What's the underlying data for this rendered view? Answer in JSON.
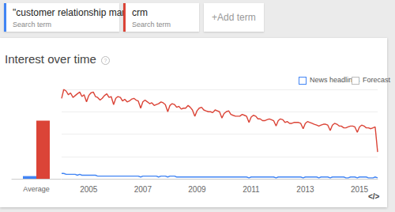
{
  "header": {
    "term_sublabel": "Search term",
    "add_term": "+Add term",
    "section_title": "Interest over time",
    "help": "?",
    "options": [
      "News headlines",
      "Forecast"
    ],
    "embed": "</>"
  },
  "chart_data": [
    {
      "type": "bar",
      "categories": [
        "Average"
      ],
      "series": [
        {
          "name": "\"customer relationship manag...",
          "color": "#4285f4",
          "values": [
            3
          ]
        },
        {
          "name": "crm",
          "color": "#db4437",
          "values": [
            65
          ]
        }
      ],
      "ylim": [
        0,
        100
      ],
      "yticks": [
        0,
        25,
        50,
        75,
        100
      ],
      "grid": false,
      "tick_labels": "x"
    },
    {
      "type": "line",
      "x": [
        2004,
        2004.08,
        2004.17,
        2004.25,
        2004.33,
        2004.42,
        2004.5,
        2004.58,
        2004.67,
        2004.75,
        2004.83,
        2004.92,
        2005,
        2005.08,
        2005.17,
        2005.25,
        2005.33,
        2005.42,
        2005.5,
        2005.58,
        2005.67,
        2005.75,
        2005.83,
        2005.92,
        2006,
        2006.08,
        2006.17,
        2006.25,
        2006.33,
        2006.42,
        2006.5,
        2006.58,
        2006.67,
        2006.75,
        2006.83,
        2006.92,
        2007,
        2007.08,
        2007.17,
        2007.25,
        2007.33,
        2007.42,
        2007.5,
        2007.58,
        2007.67,
        2007.75,
        2007.83,
        2007.92,
        2008,
        2008.08,
        2008.17,
        2008.25,
        2008.33,
        2008.42,
        2008.5,
        2008.58,
        2008.67,
        2008.75,
        2008.83,
        2008.92,
        2009,
        2009.08,
        2009.17,
        2009.25,
        2009.33,
        2009.42,
        2009.5,
        2009.58,
        2009.67,
        2009.75,
        2009.83,
        2009.92,
        2010,
        2010.08,
        2010.17,
        2010.25,
        2010.33,
        2010.42,
        2010.5,
        2010.58,
        2010.67,
        2010.75,
        2010.83,
        2010.92,
        2011,
        2011.08,
        2011.17,
        2011.25,
        2011.33,
        2011.42,
        2011.5,
        2011.58,
        2011.67,
        2011.75,
        2011.83,
        2011.92,
        2012,
        2012.08,
        2012.17,
        2012.25,
        2012.33,
        2012.42,
        2012.5,
        2012.58,
        2012.67,
        2012.75,
        2012.83,
        2012.92,
        2013,
        2013.08,
        2013.17,
        2013.25,
        2013.33,
        2013.42,
        2013.5,
        2013.58,
        2013.67,
        2013.75,
        2013.83,
        2013.92,
        2014,
        2014.08,
        2014.17,
        2014.25,
        2014.33,
        2014.42,
        2014.5,
        2014.58,
        2014.67,
        2014.75,
        2014.83,
        2014.92,
        2015,
        2015.08,
        2015.17,
        2015.25,
        2015.33,
        2015.42,
        2015.5,
        2015.58,
        2015.67
      ],
      "series": [
        {
          "name": "\"customer relationship manag...",
          "color": "#4285f4",
          "values": [
            6,
            6,
            5,
            5,
            5,
            5,
            5,
            4,
            5,
            4,
            4,
            4,
            4,
            4,
            4,
            4,
            3,
            3,
            3,
            3,
            3,
            3,
            3,
            3,
            3,
            3,
            3,
            3,
            3,
            3,
            3,
            3,
            3,
            3,
            3,
            2,
            3,
            3,
            3,
            3,
            3,
            3,
            3,
            2,
            3,
            3,
            3,
            2,
            3,
            3,
            3,
            2,
            2,
            2,
            2,
            2,
            2,
            2,
            2,
            2,
            2,
            2,
            2,
            2,
            2,
            2,
            2,
            2,
            2,
            2,
            2,
            2,
            2,
            2,
            2,
            2,
            2,
            2,
            2,
            2,
            2,
            2,
            2,
            1,
            2,
            2,
            2,
            2,
            2,
            2,
            2,
            2,
            2,
            2,
            2,
            1,
            2,
            2,
            2,
            2,
            2,
            2,
            2,
            2,
            2,
            2,
            2,
            1,
            2,
            2,
            2,
            2,
            2,
            2,
            1,
            2,
            2,
            2,
            2,
            1,
            2,
            2,
            2,
            2,
            2,
            2,
            1,
            1,
            2,
            2,
            2,
            1,
            2,
            2,
            2,
            2,
            1,
            1,
            1,
            2,
            1
          ]
        },
        {
          "name": "crm",
          "color": "#db4437",
          "values": [
            90,
            100,
            98,
            94,
            96,
            91,
            93,
            95,
            97,
            92,
            94,
            86,
            93,
            96,
            97,
            92,
            91,
            88,
            90,
            93,
            95,
            91,
            92,
            83,
            90,
            92,
            91,
            87,
            89,
            86,
            87,
            89,
            90,
            88,
            87,
            79,
            86,
            88,
            86,
            84,
            85,
            82,
            83,
            84,
            86,
            85,
            83,
            75,
            82,
            84,
            83,
            80,
            81,
            78,
            79,
            79,
            82,
            80,
            77,
            70,
            76,
            79,
            80,
            77,
            76,
            75,
            75,
            74,
            77,
            76,
            75,
            68,
            73,
            75,
            76,
            72,
            71,
            70,
            70,
            70,
            72,
            71,
            70,
            63,
            69,
            71,
            70,
            67,
            67,
            65,
            65,
            66,
            67,
            66,
            65,
            59,
            65,
            67,
            66,
            63,
            64,
            62,
            62,
            63,
            63,
            63,
            62,
            56,
            62,
            64,
            63,
            62,
            61,
            60,
            59,
            60,
            61,
            61,
            60,
            54,
            60,
            62,
            61,
            59,
            59,
            57,
            57,
            58,
            59,
            59,
            58,
            52,
            58,
            60,
            59,
            57,
            57,
            56,
            57,
            58,
            30
          ]
        }
      ],
      "xlim": [
        2004,
        2015.67
      ],
      "xticks": [
        2005,
        2007,
        2009,
        2011,
        2013,
        2015
      ],
      "ylim": [
        0,
        100
      ],
      "yticks": [
        0,
        25,
        50,
        75,
        100
      ],
      "grid": true,
      "tick_labels": "x"
    }
  ]
}
